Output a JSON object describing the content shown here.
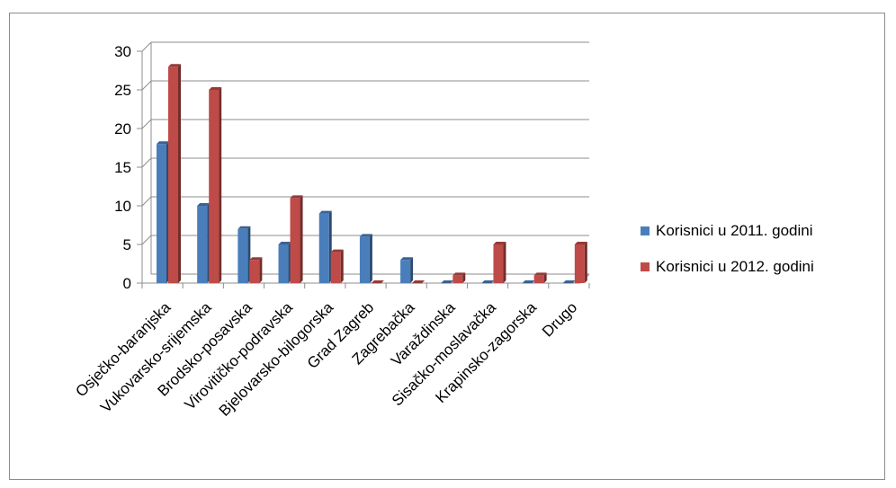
{
  "chart_data": {
    "type": "bar",
    "title": "",
    "xlabel": "",
    "ylabel": "",
    "ylim": [
      0,
      30
    ],
    "yticks": [
      0,
      5,
      10,
      15,
      20,
      25,
      30
    ],
    "grid": true,
    "legend_position": "right",
    "categories": [
      "Osječko-baranjska",
      "Vukovarsko-srijemska",
      "Brodsko-posavska",
      "Virovitičko-podravska",
      "Bjelovarsko-bilogorska",
      "Grad Zagreb",
      "Zagrebačka",
      "Varaždinska",
      "Sisačko-moslavačka",
      "Krapinsko-zagorska",
      "Drugo"
    ],
    "series": [
      {
        "name": "Korisnici u 2011. godini",
        "color": "#4a7ebb",
        "values": [
          18,
          10,
          7,
          5,
          9,
          6,
          3,
          0,
          0,
          0,
          0
        ]
      },
      {
        "name": "Korisnici u 2012. godini",
        "color": "#be4b48",
        "values": [
          28,
          25,
          3,
          11,
          4,
          0,
          0,
          1,
          5,
          1,
          5
        ]
      }
    ]
  }
}
